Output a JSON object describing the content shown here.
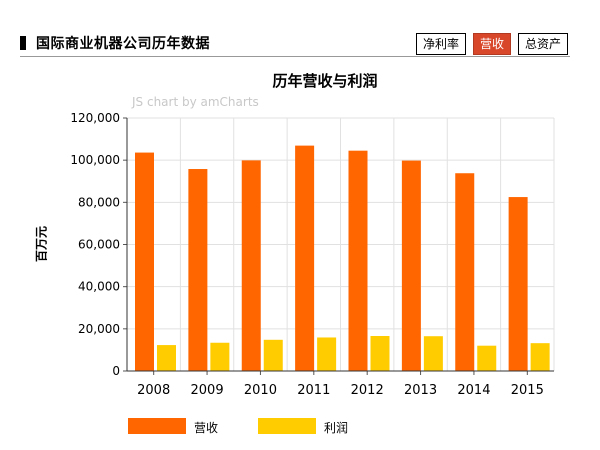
{
  "header": {
    "title": "国际商业机器公司历年数据",
    "tabs": [
      {
        "label": "净利率",
        "active": false
      },
      {
        "label": "营收",
        "active": true
      },
      {
        "label": "总资产",
        "active": false
      }
    ]
  },
  "watermark": "JS chart by amCharts",
  "colors": {
    "revenue": "#ff6600",
    "profit": "#ffcc00",
    "active_tab": "#d9472b"
  },
  "chart_data": {
    "type": "bar",
    "title": "历年营收与利润",
    "xlabel": "",
    "ylabel": "百万元",
    "ylim": [
      0,
      120000
    ],
    "yticks": [
      0,
      20000,
      40000,
      60000,
      80000,
      100000,
      120000
    ],
    "ytick_labels": [
      "0",
      "20,000",
      "40,000",
      "60,000",
      "80,000",
      "100,000",
      "120,000"
    ],
    "categories": [
      "2008",
      "2009",
      "2010",
      "2011",
      "2012",
      "2013",
      "2014",
      "2015"
    ],
    "series": [
      {
        "name": "营收",
        "color": "#ff6600",
        "values": [
          103600,
          95800,
          99900,
          106900,
          104500,
          99800,
          93800,
          82500
        ]
      },
      {
        "name": "利润",
        "color": "#ffcc00",
        "values": [
          12300,
          13400,
          14800,
          15900,
          16600,
          16500,
          12000,
          13200
        ]
      }
    ],
    "legend_position": "bottom-left",
    "grid": true
  }
}
